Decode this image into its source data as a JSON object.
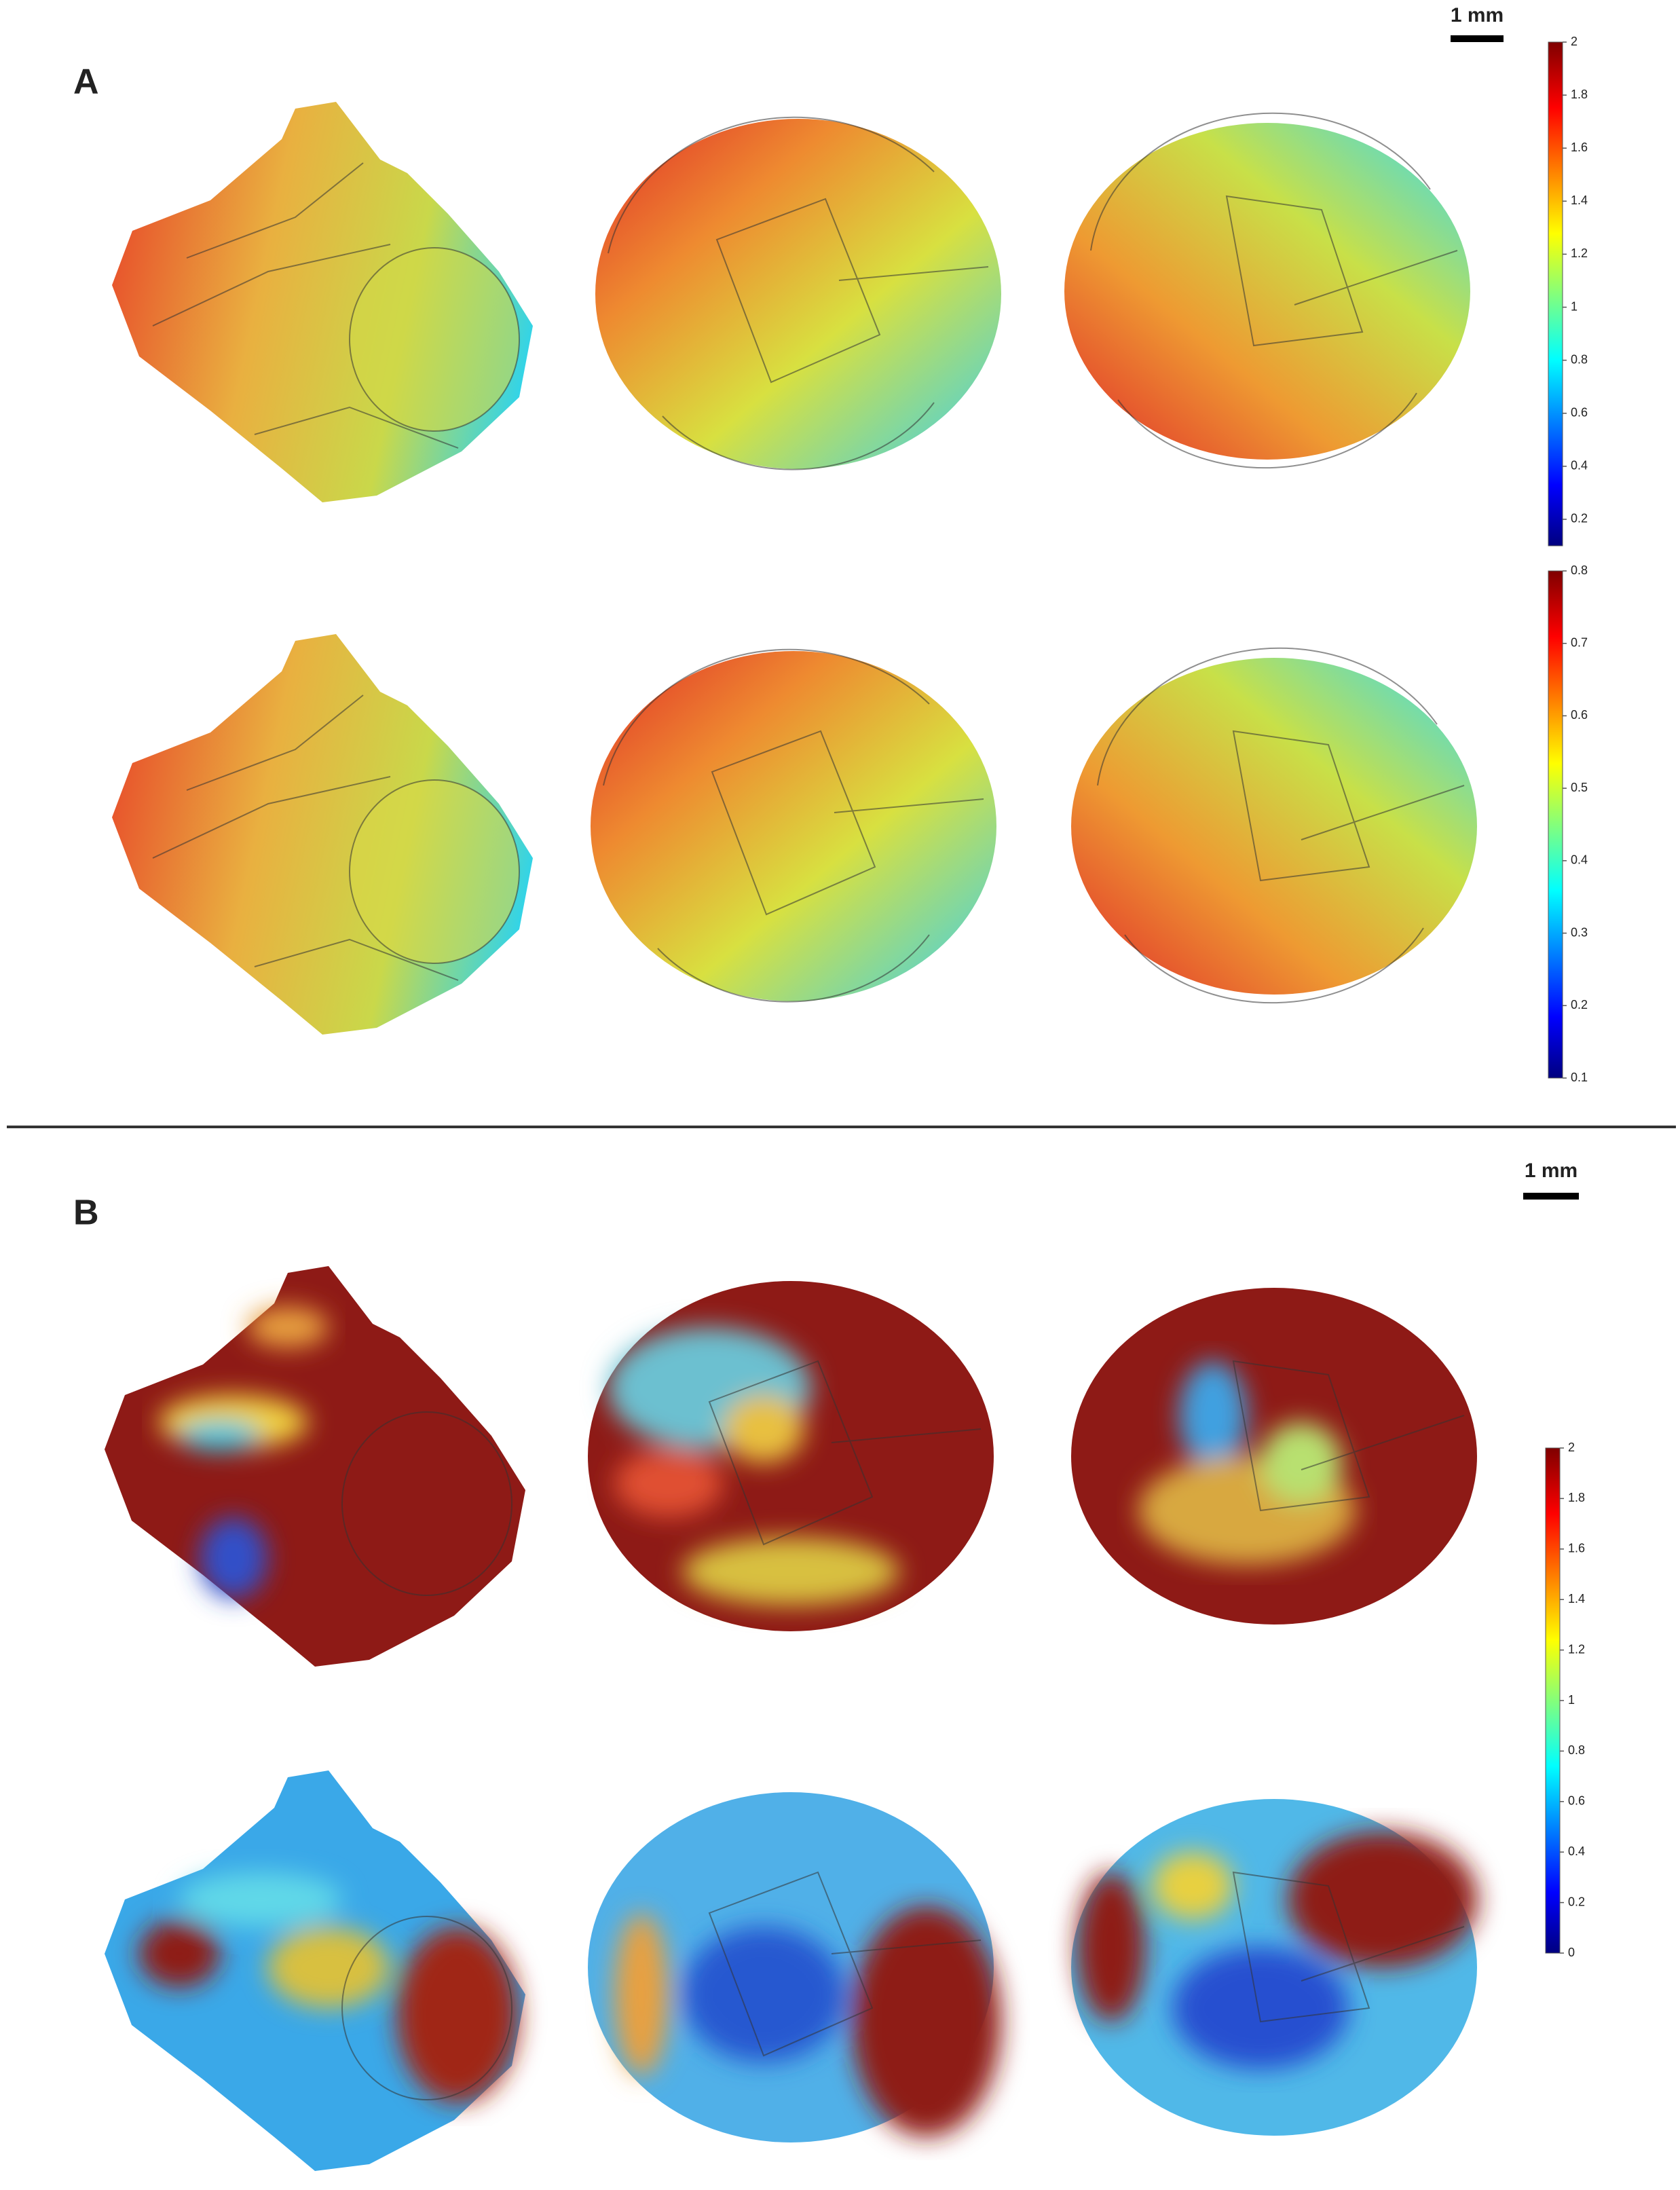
{
  "panels": [
    {
      "label": "A",
      "scale_bar": "1 mm",
      "colorbars": [
        {
          "ylim": [
            0.1,
            2
          ],
          "yticks": [
            0.2,
            0.4,
            0.6,
            0.8,
            1,
            1.2,
            1.4,
            1.6,
            1.8,
            2
          ]
        },
        {
          "ylim": [
            0.1,
            0.8
          ],
          "yticks": [
            0.1,
            0.2,
            0.3,
            0.4,
            0.5,
            0.6,
            0.7,
            0.8
          ]
        }
      ]
    },
    {
      "label": "B",
      "scale_bar": "1 mm",
      "colorbars": [
        {
          "ylim": [
            0,
            2
          ],
          "yticks": [
            0,
            0.2,
            0.4,
            0.6,
            0.8,
            1,
            1.2,
            1.4,
            1.6,
            1.8,
            2
          ]
        }
      ]
    }
  ]
}
